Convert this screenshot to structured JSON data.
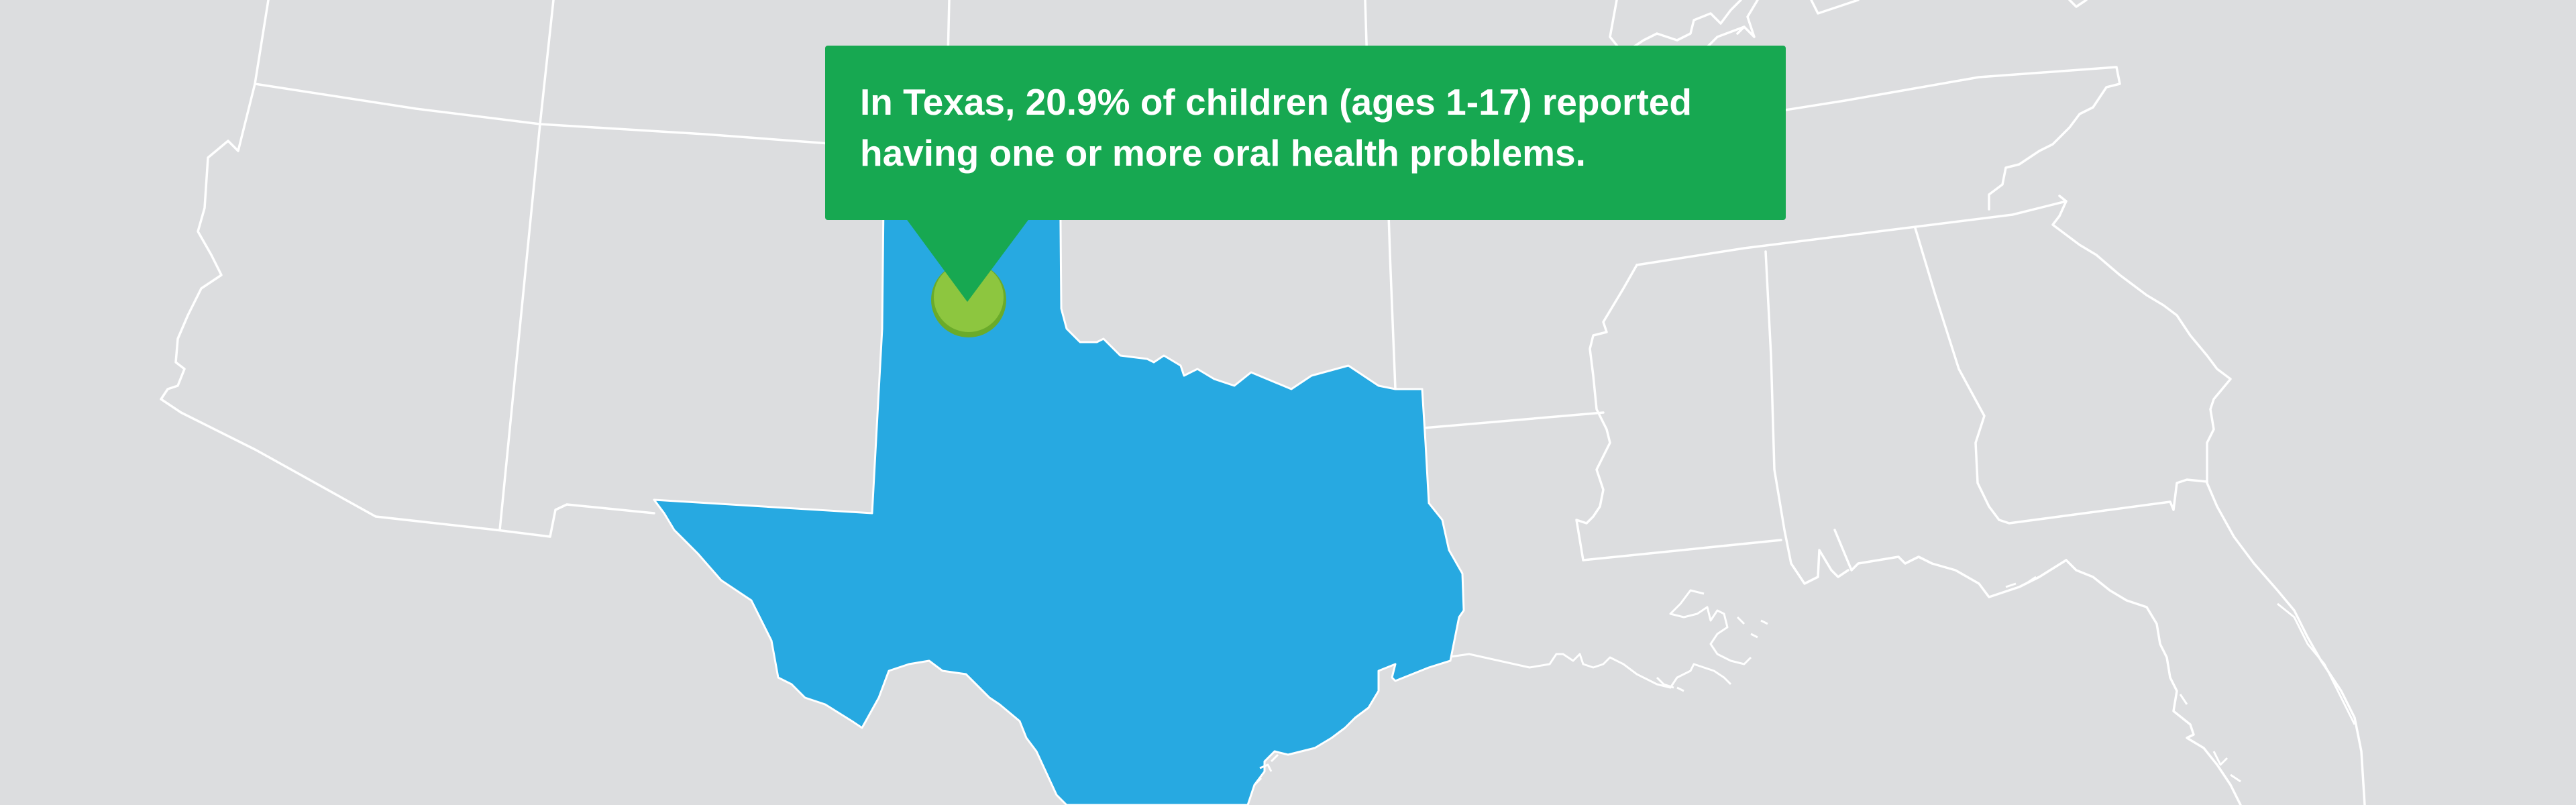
{
  "map": {
    "highlighted_state": "Texas",
    "marker_icon": "location-dot-icon",
    "colors": {
      "background": "#dcdddf",
      "borders": "#ffffff",
      "highlight_fill": "#27a9e1",
      "marker_fill": "#8dc63f",
      "marker_outline": "#6aab2a",
      "callout_fill": "#17a851"
    }
  },
  "callout": {
    "text": "In Texas, 20.9% of children (ages 1-17) reported having one or more oral health problems."
  }
}
